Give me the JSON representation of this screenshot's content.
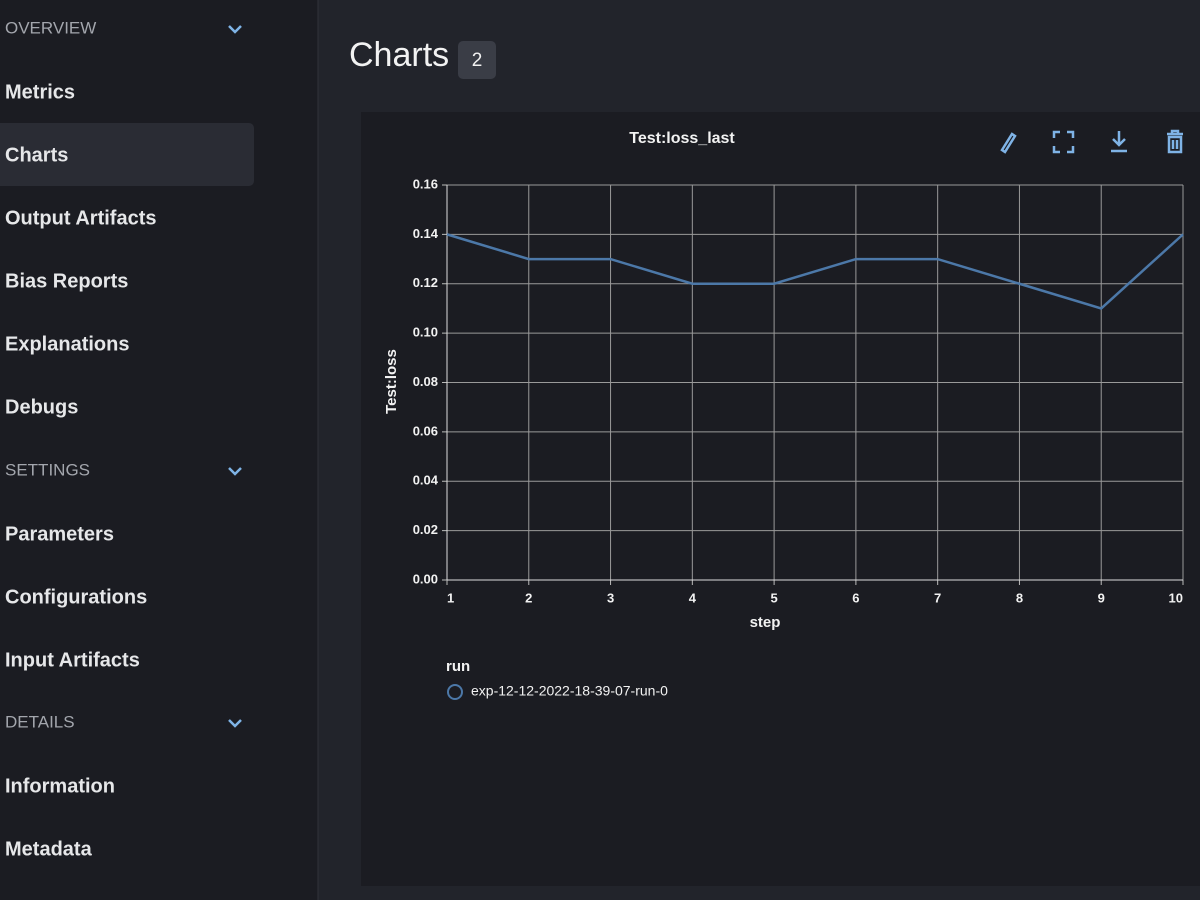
{
  "sidebar": {
    "sections": [
      {
        "title": "OVERVIEW",
        "items": [
          {
            "label": "Metrics"
          },
          {
            "label": "Charts",
            "active": true
          },
          {
            "label": "Output Artifacts"
          },
          {
            "label": "Bias Reports"
          },
          {
            "label": "Explanations"
          },
          {
            "label": "Debugs"
          }
        ]
      },
      {
        "title": "SETTINGS",
        "items": [
          {
            "label": "Parameters"
          },
          {
            "label": "Configurations"
          },
          {
            "label": "Input Artifacts"
          }
        ]
      },
      {
        "title": "DETAILS",
        "items": [
          {
            "label": "Information"
          },
          {
            "label": "Metadata"
          }
        ]
      }
    ]
  },
  "header": {
    "title": "Charts",
    "count": 2
  },
  "chart_data": {
    "type": "line",
    "title": "Test:loss_last",
    "x_label": "step",
    "y_label": "Test:loss",
    "x": [
      1,
      2,
      3,
      4,
      5,
      6,
      7,
      8,
      9,
      10
    ],
    "series": [
      {
        "name": "exp-12-12-2022-18-39-07-run-0",
        "color": "#4c78a8",
        "values": [
          0.14,
          0.13,
          0.13,
          0.12,
          0.12,
          0.13,
          0.13,
          0.12,
          0.11,
          0.14
        ]
      }
    ],
    "xlim": [
      1,
      10
    ],
    "xticks": [
      1,
      2,
      3,
      4,
      5,
      6,
      7,
      8,
      9,
      10
    ],
    "ylim": [
      0,
      0.16
    ],
    "yticks": [
      {
        "value": 0,
        "label": "0.00"
      },
      0.02,
      0.04,
      0.06,
      0.08,
      {
        "value": 0.1,
        "label": "0.10"
      },
      0.12,
      0.14,
      0.16
    ],
    "grid": true,
    "legend_title": "run"
  }
}
